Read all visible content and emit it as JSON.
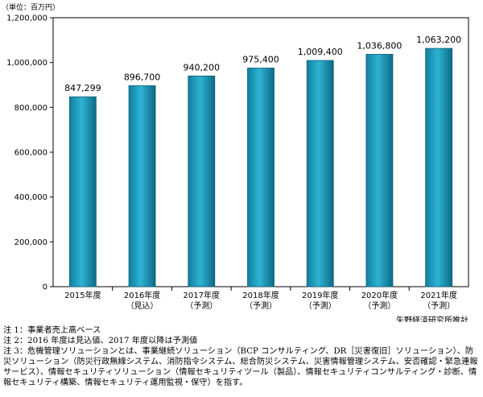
{
  "chart_data": {
    "type": "bar",
    "unit_label": "（単位：百万円）",
    "categories": [
      [
        "2015年度"
      ],
      [
        "2016年度",
        "（見込）"
      ],
      [
        "2017年度",
        "（予測）"
      ],
      [
        "2018年度",
        "（予測）"
      ],
      [
        "2019年度",
        "（予測）"
      ],
      [
        "2020年度",
        "（予測）"
      ],
      [
        "2021年度",
        "（予測）"
      ]
    ],
    "values": [
      847299,
      896700,
      940200,
      975400,
      1009400,
      1036800,
      1063200
    ],
    "value_labels": [
      "847,299",
      "896,700",
      "940,200",
      "975,400",
      "1,009,400",
      "1,036,800",
      "1,063,200"
    ],
    "ylim": [
      0,
      1200000
    ],
    "yticks": [
      0,
      200000,
      400000,
      600000,
      800000,
      1000000,
      1200000
    ],
    "ytick_labels": [
      "0",
      "200,000",
      "400,000",
      "600,000",
      "800,000",
      "1,000,000",
      "1,200,000"
    ],
    "grid": false,
    "bar_color": "#1b9bbd",
    "bar_edge_color": "#0e5f78"
  },
  "source": "矢野経済研究所推計",
  "notes": [
    "注 1：事業者売上高ベース",
    "注 2：2016 年度は見込値、2017 年度以降は予測値",
    "注 3：危機管理ソリューションとは、事業継続ソリューション（BCP コンサルティング、DR［災害復旧］ソリューション）、防災ソリューション（防災行政無線システム、消防指令システム、総合防災システム、災害情報管理システム、安否確認・緊急連報サービス）、情報セキュリティソリューション（情報セキュリティツール（製品）、情報セキュリティコンサルティング・診断、情報セキュリティ構築、情報セキュリティ運用監視・保守）を指す。"
  ]
}
